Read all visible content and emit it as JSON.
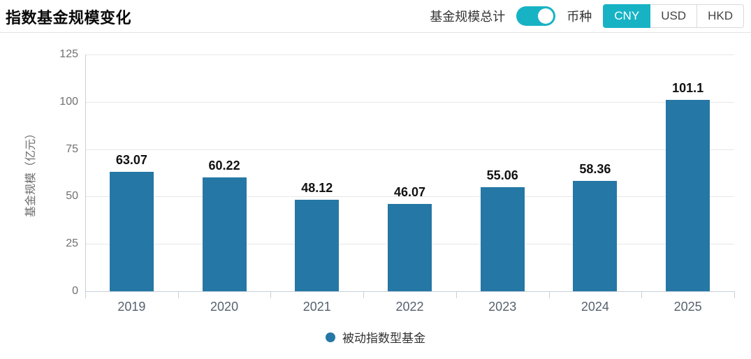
{
  "page_title": "指数基金规模变化",
  "header": {
    "total_toggle": {
      "label": "基金规模总计",
      "state": "on"
    },
    "currency": {
      "label": "币种",
      "options": [
        "CNY",
        "USD",
        "HKD"
      ],
      "selected": "CNY"
    }
  },
  "colors": {
    "accent_teal": "#17b3c5",
    "bar_blue": "#2577a5",
    "grid": "#e7e7e7",
    "axis": "#c7d0d9"
  },
  "chart_data": {
    "type": "bar",
    "title": "指数基金规模变化",
    "categories": [
      "2019",
      "2020",
      "2021",
      "2022",
      "2023",
      "2024",
      "2025"
    ],
    "values": [
      63.07,
      60.22,
      48.12,
      46.07,
      55.06,
      58.36,
      101.1
    ],
    "value_labels": [
      "63.07",
      "60.22",
      "48.12",
      "46.07",
      "55.06",
      "58.36",
      "101.1"
    ],
    "series_name": "被动指数型基金",
    "xlabel": "",
    "ylabel": "基金规模（亿元）",
    "ylim": [
      0,
      125
    ],
    "yticks": [
      0,
      25,
      50,
      75,
      100,
      125
    ],
    "grid": true,
    "legend_position": "bottom",
    "legend_entries": [
      "被动指数型基金"
    ]
  }
}
